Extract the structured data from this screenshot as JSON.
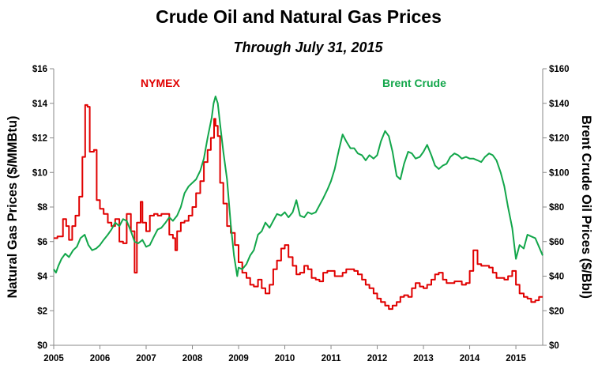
{
  "chart_data": {
    "type": "line",
    "title": "Crude Oil and Natural Gas Prices",
    "subtitle": "Through July 31, 2015",
    "xlabel": "",
    "ylabel_left": "Natural Gas Prices ($/MMBtu)",
    "ylabel_right": "Brent Crude Oil Prices ($/Bbl)",
    "xlim": [
      2005,
      2015.58
    ],
    "ylim_left": [
      0,
      16
    ],
    "ylim_right": [
      0,
      160
    ],
    "x_ticks": [
      "2005",
      "2006",
      "2007",
      "2008",
      "2009",
      "2010",
      "2011",
      "2012",
      "2013",
      "2014",
      "2015"
    ],
    "y_ticks_left": [
      "$0",
      "$2",
      "$4",
      "$6",
      "$8",
      "$10",
      "$12",
      "$14",
      "$16"
    ],
    "y_ticks_right": [
      "$0",
      "$20",
      "$40",
      "$60",
      "$80",
      "$100",
      "$120",
      "$140",
      "$160"
    ],
    "grid": false,
    "legend": "inline labels",
    "series": [
      {
        "name": "NYMEX",
        "axis": "left",
        "color": "#e00000",
        "x": [
          2005.0,
          2005.08,
          2005.17,
          2005.2,
          2005.27,
          2005.33,
          2005.4,
          2005.47,
          2005.55,
          2005.62,
          2005.68,
          2005.73,
          2005.78,
          2005.87,
          2005.93,
          2006.0,
          2006.08,
          2006.17,
          2006.25,
          2006.33,
          2006.42,
          2006.5,
          2006.58,
          2006.67,
          2006.75,
          2006.8,
          2006.88,
          2006.92,
          2007.0,
          2007.08,
          2007.17,
          2007.25,
          2007.33,
          2007.42,
          2007.5,
          2007.58,
          2007.63,
          2007.67,
          2007.75,
          2007.83,
          2007.92,
          2008.0,
          2008.08,
          2008.17,
          2008.25,
          2008.33,
          2008.4,
          2008.47,
          2008.5,
          2008.55,
          2008.6,
          2008.67,
          2008.75,
          2008.83,
          2008.92,
          2009.0,
          2009.08,
          2009.17,
          2009.25,
          2009.33,
          2009.42,
          2009.5,
          2009.58,
          2009.67,
          2009.75,
          2009.83,
          2009.92,
          2010.0,
          2010.08,
          2010.17,
          2010.25,
          2010.33,
          2010.42,
          2010.5,
          2010.58,
          2010.67,
          2010.75,
          2010.83,
          2010.92,
          2011.0,
          2011.08,
          2011.17,
          2011.25,
          2011.33,
          2011.42,
          2011.5,
          2011.58,
          2011.67,
          2011.75,
          2011.83,
          2011.92,
          2012.0,
          2012.08,
          2012.17,
          2012.25,
          2012.33,
          2012.42,
          2012.5,
          2012.58,
          2012.67,
          2012.75,
          2012.83,
          2012.92,
          2013.0,
          2013.08,
          2013.17,
          2013.25,
          2013.33,
          2013.42,
          2013.5,
          2013.58,
          2013.67,
          2013.75,
          2013.83,
          2013.92,
          2014.0,
          2014.08,
          2014.17,
          2014.25,
          2014.33,
          2014.42,
          2014.5,
          2014.58,
          2014.67,
          2014.75,
          2014.83,
          2014.92,
          2015.0,
          2015.08,
          2015.17,
          2015.25,
          2015.33,
          2015.42,
          2015.5,
          2015.58
        ],
        "values": [
          6.2,
          6.3,
          6.3,
          7.3,
          6.9,
          6.1,
          6.9,
          7.5,
          8.6,
          10.9,
          13.9,
          13.8,
          11.2,
          11.3,
          8.4,
          7.9,
          7.6,
          7.1,
          6.9,
          7.3,
          6.0,
          5.9,
          7.6,
          6.6,
          4.2,
          7.1,
          8.3,
          7.1,
          6.6,
          7.5,
          7.6,
          7.5,
          7.6,
          7.6,
          6.4,
          6.2,
          5.5,
          6.6,
          7.1,
          7.2,
          7.5,
          8.0,
          8.8,
          9.5,
          10.6,
          11.3,
          12.0,
          13.1,
          12.7,
          12.1,
          9.4,
          8.2,
          6.9,
          6.5,
          5.8,
          4.8,
          4.2,
          3.9,
          3.5,
          3.4,
          3.8,
          3.3,
          3.0,
          3.5,
          4.4,
          4.9,
          5.6,
          5.8,
          5.1,
          4.6,
          4.1,
          4.2,
          4.6,
          4.4,
          3.9,
          3.8,
          3.7,
          4.2,
          4.3,
          4.3,
          4.0,
          4.0,
          4.2,
          4.4,
          4.4,
          4.3,
          4.1,
          3.8,
          3.5,
          3.3,
          3.0,
          2.7,
          2.5,
          2.3,
          2.1,
          2.3,
          2.5,
          2.8,
          2.9,
          2.8,
          3.3,
          3.6,
          3.4,
          3.3,
          3.5,
          3.8,
          4.1,
          4.2,
          3.8,
          3.6,
          3.6,
          3.7,
          3.7,
          3.5,
          3.6,
          4.3,
          5.5,
          4.7,
          4.6,
          4.6,
          4.5,
          4.2,
          3.9,
          3.9,
          3.8,
          4.0,
          4.3,
          3.5,
          3.0,
          2.8,
          2.7,
          2.5,
          2.6,
          2.8,
          2.8
        ]
      },
      {
        "name": "Brent Crude",
        "axis": "right",
        "color": "#12a64a",
        "x": [
          2005.0,
          2005.05,
          2005.1,
          2005.17,
          2005.25,
          2005.33,
          2005.42,
          2005.5,
          2005.58,
          2005.67,
          2005.75,
          2005.83,
          2005.92,
          2006.0,
          2006.08,
          2006.17,
          2006.25,
          2006.33,
          2006.42,
          2006.5,
          2006.58,
          2006.67,
          2006.75,
          2006.83,
          2006.92,
          2007.0,
          2007.08,
          2007.17,
          2007.25,
          2007.33,
          2007.42,
          2007.5,
          2007.58,
          2007.67,
          2007.75,
          2007.83,
          2007.92,
          2008.0,
          2008.08,
          2008.17,
          2008.25,
          2008.33,
          2008.42,
          2008.46,
          2008.5,
          2008.55,
          2008.6,
          2008.67,
          2008.75,
          2008.83,
          2008.9,
          2008.97,
          2009.0,
          2009.08,
          2009.17,
          2009.25,
          2009.33,
          2009.42,
          2009.5,
          2009.58,
          2009.67,
          2009.75,
          2009.83,
          2009.92,
          2010.0,
          2010.08,
          2010.17,
          2010.25,
          2010.33,
          2010.42,
          2010.5,
          2010.58,
          2010.67,
          2010.75,
          2010.83,
          2010.92,
          2011.0,
          2011.08,
          2011.17,
          2011.25,
          2011.33,
          2011.42,
          2011.5,
          2011.58,
          2011.67,
          2011.75,
          2011.83,
          2011.92,
          2012.0,
          2012.08,
          2012.17,
          2012.25,
          2012.33,
          2012.42,
          2012.5,
          2012.58,
          2012.67,
          2012.75,
          2012.83,
          2012.92,
          2013.0,
          2013.08,
          2013.17,
          2013.25,
          2013.33,
          2013.42,
          2013.5,
          2013.58,
          2013.67,
          2013.75,
          2013.83,
          2013.92,
          2014.0,
          2014.08,
          2014.17,
          2014.25,
          2014.33,
          2014.42,
          2014.5,
          2014.58,
          2014.67,
          2014.75,
          2014.83,
          2014.92,
          2015.0,
          2015.08,
          2015.17,
          2015.25,
          2015.33,
          2015.42,
          2015.5,
          2015.58
        ],
        "values": [
          44,
          42,
          46,
          50,
          53,
          51,
          55,
          57,
          62,
          64,
          58,
          55,
          56,
          58,
          61,
          64,
          67,
          71,
          69,
          73,
          72,
          66,
          60,
          59,
          61,
          57,
          58,
          63,
          67,
          68,
          71,
          74,
          72,
          75,
          80,
          88,
          92,
          94,
          96,
          101,
          108,
          120,
          132,
          140,
          144,
          140,
          128,
          112,
          96,
          70,
          52,
          40,
          45,
          44,
          47,
          52,
          55,
          64,
          66,
          71,
          68,
          72,
          76,
          75,
          77,
          74,
          77,
          84,
          75,
          74,
          77,
          76,
          77,
          81,
          85,
          90,
          95,
          102,
          113,
          122,
          118,
          114,
          114,
          111,
          110,
          107,
          110,
          108,
          110,
          118,
          124,
          121,
          112,
          98,
          96,
          105,
          112,
          111,
          108,
          109,
          112,
          116,
          110,
          104,
          102,
          104,
          105,
          109,
          111,
          110,
          108,
          109,
          108,
          108,
          107,
          106,
          109,
          111,
          110,
          107,
          100,
          92,
          80,
          68,
          50,
          58,
          56,
          64,
          63,
          62,
          57,
          52
        ]
      }
    ],
    "annotations": [
      {
        "text": "NYMEX",
        "color": "#e00000"
      },
      {
        "text": "Brent Crude",
        "color": "#12a64a"
      }
    ]
  }
}
